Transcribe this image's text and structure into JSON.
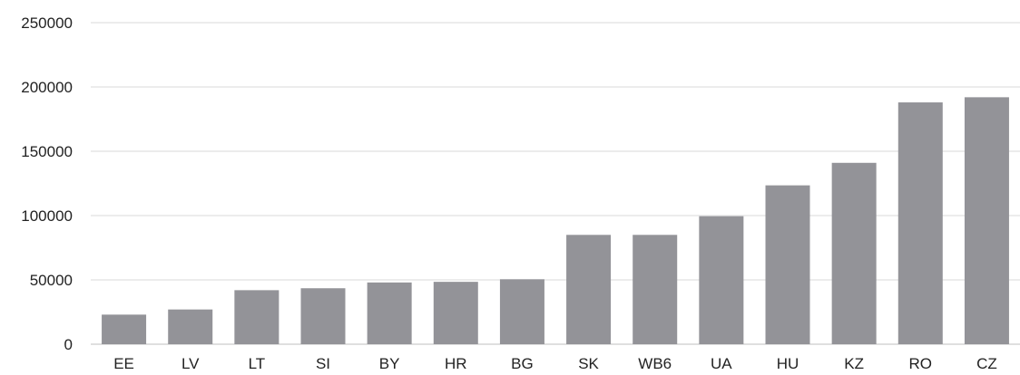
{
  "chart_data": {
    "type": "bar",
    "title": "",
    "xlabel": "",
    "ylabel": "",
    "categories": [
      "EE",
      "LV",
      "LT",
      "SI",
      "BY",
      "HR",
      "BG",
      "SK",
      "WB6",
      "UA",
      "HU",
      "KZ",
      "RO",
      "CZ"
    ],
    "values": [
      23000,
      27000,
      42000,
      43500,
      48000,
      48500,
      50500,
      85000,
      85000,
      99500,
      123500,
      141000,
      188000,
      192000
    ],
    "ylim": [
      0,
      250000
    ],
    "yticks": [
      "0",
      "50000",
      "100000",
      "150000",
      "200000",
      "250000"
    ],
    "grid": true,
    "legend": "none",
    "bar_color": "#939398"
  }
}
